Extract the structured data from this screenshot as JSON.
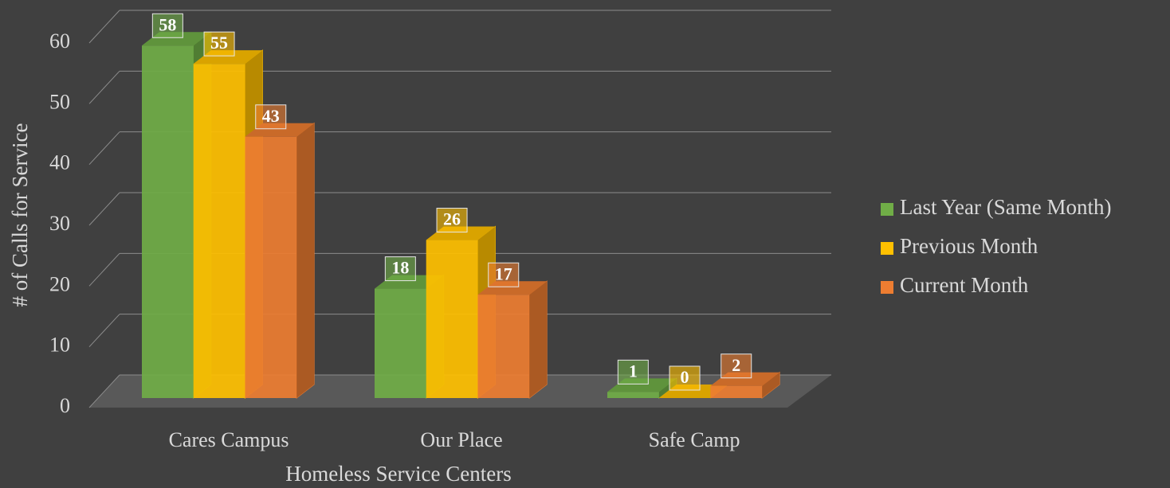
{
  "chart_data": {
    "type": "bar3d",
    "xlabel": "Homeless Service Centers",
    "ylabel": "# of Calls for Service",
    "categories": [
      "Cares Campus",
      "Our Place",
      "Safe Camp"
    ],
    "series": [
      {
        "name": "Last Year (Same Month)",
        "color": "#70ad47",
        "values": [
          58,
          18,
          1
        ]
      },
      {
        "name": "Previous Month",
        "color": "#ffc000",
        "values": [
          55,
          26,
          0
        ]
      },
      {
        "name": "Current Month",
        "color": "#ed7d31",
        "values": [
          43,
          17,
          2
        ]
      }
    ],
    "ylim": [
      0,
      60
    ],
    "yticks": [
      0,
      10,
      20,
      30,
      40,
      50,
      60
    ],
    "grid": true,
    "legend": "right"
  }
}
